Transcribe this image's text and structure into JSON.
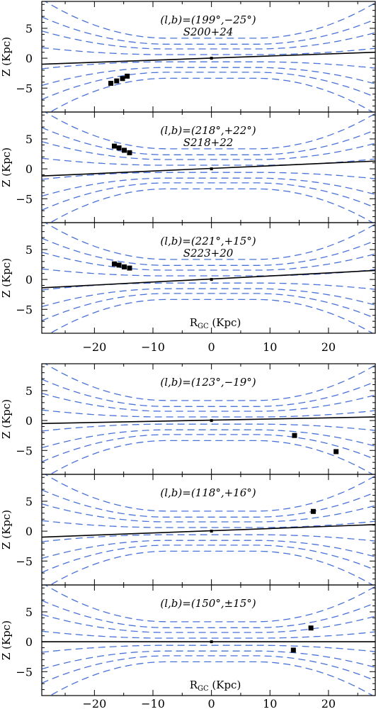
{
  "figure": {
    "background": "#ffffff",
    "colors": {
      "frame": "#000000",
      "contour": "#4a72d8",
      "plane": "#000000",
      "marker": "#000000"
    }
  },
  "chart_data": [
    {
      "type": "scatter",
      "annotation": "(l,b)=(199°,−25°)",
      "subtitle": "S200+24",
      "ylabel": "Z (Kpc)",
      "xlim": [
        -29,
        28
      ],
      "ylim": [
        -9,
        9.5
      ],
      "yticks": [
        "5",
        "0",
        "−5"
      ],
      "plane_line": {
        "x": [
          -29,
          28
        ],
        "y": [
          -1.0,
          1.0
        ]
      },
      "points": {
        "x": [
          -17.2,
          -16.2,
          -15.2,
          -14.4
        ],
        "y": [
          -4.2,
          -3.8,
          -3.4,
          -3.0
        ]
      },
      "sun": {
        "x": [
          0
        ],
        "y": [
          0
        ]
      }
    },
    {
      "type": "scatter",
      "annotation": "(l,b)=(218°,+22°)",
      "subtitle": "S218+22",
      "ylabel": "Z (Kpc)",
      "xlim": [
        -29,
        28
      ],
      "ylim": [
        -9,
        9.5
      ],
      "yticks": [
        "5",
        "0",
        "−5"
      ],
      "plane_line": {
        "x": [
          -29,
          28
        ],
        "y": [
          -1.2,
          1.3
        ]
      },
      "points": {
        "x": [
          -16.6,
          -15.8,
          -14.9,
          -14.0
        ],
        "y": [
          3.8,
          3.5,
          3.1,
          2.7
        ]
      },
      "sun": {
        "x": [
          0
        ],
        "y": [
          0
        ]
      }
    },
    {
      "type": "scatter",
      "annotation": "(l,b)=(221°,+15°)",
      "subtitle": "S223+20",
      "ylabel": "Z (Kpc)",
      "xlabel": "RGC (Kpc)",
      "xlim": [
        -29,
        28
      ],
      "ylim": [
        -9,
        9.5
      ],
      "yticks": [
        "5",
        "0",
        "−5"
      ],
      "xticks": [
        "−20",
        "−10",
        "0",
        "10",
        "20"
      ],
      "plane_line": {
        "x": [
          -29,
          28
        ],
        "y": [
          -1.4,
          1.5
        ]
      },
      "points": {
        "x": [
          -16.6,
          -15.8,
          -14.9,
          -14.0
        ],
        "y": [
          2.6,
          2.4,
          2.1,
          1.9
        ]
      },
      "sun": {
        "x": [
          0
        ],
        "y": [
          0
        ]
      }
    },
    {
      "type": "scatter",
      "annotation": "(l,b)=(123°,−19°)",
      "ylabel": "Z (Kpc)",
      "xlim": [
        -29,
        28
      ],
      "ylim": [
        -9,
        9.5
      ],
      "yticks": [
        "5",
        "0",
        "−5"
      ],
      "plane_line": {
        "x": [
          -29,
          28
        ],
        "y": [
          -0.5,
          0.6
        ]
      },
      "points": {
        "x": [
          14.2,
          21.3
        ],
        "y": [
          -2.5,
          -5.2
        ]
      },
      "sun": {
        "x": [
          0
        ],
        "y": [
          0
        ]
      }
    },
    {
      "type": "scatter",
      "annotation": "(l,b)=(118°,+16°)",
      "ylabel": "Z (Kpc)",
      "xlim": [
        -29,
        28
      ],
      "ylim": [
        -9,
        9.5
      ],
      "yticks": [
        "5",
        "0",
        "−5"
      ],
      "plane_line": {
        "x": [
          -29,
          28
        ],
        "y": [
          -1.0,
          1.1
        ]
      },
      "points": {
        "x": [
          17.4
        ],
        "y": [
          3.3
        ]
      },
      "sun": {
        "x": [
          0
        ],
        "y": [
          0
        ]
      }
    },
    {
      "type": "scatter",
      "annotation": "(l,b)=(150°,±15°)",
      "ylabel": "Z (Kpc)",
      "xlabel": "RGC (Kpc)",
      "xlim": [
        -29,
        28
      ],
      "ylim": [
        -9,
        9.5
      ],
      "yticks": [
        "5",
        "0",
        "−5"
      ],
      "xticks": [
        "−20",
        "−10",
        "0",
        "10",
        "20"
      ],
      "plane_line": {
        "x": [
          -29,
          28
        ],
        "y": [
          0.0,
          0.0
        ]
      },
      "points": {
        "x": [
          17.0,
          14.0
        ],
        "y": [
          2.3,
          -1.4
        ]
      },
      "sun": {
        "x": [
          0
        ],
        "y": [
          0
        ]
      }
    }
  ]
}
